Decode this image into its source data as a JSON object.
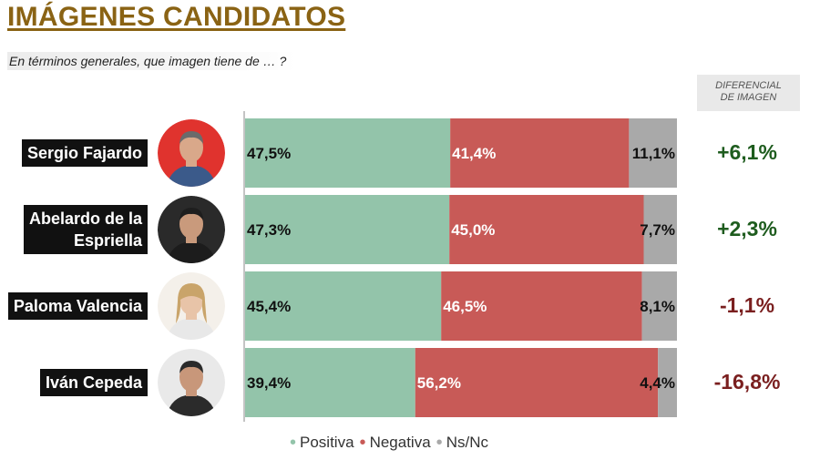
{
  "header": {
    "title": "IMÁGENES CANDIDATOS",
    "subtitle": "En términos generales, que imagen tiene de … ?",
    "diff_label_line1": "DIFERENCIAL",
    "diff_label_line2": "DE IMAGEN"
  },
  "candidates": [
    {
      "name_lines": [
        "Sergio Fajardo"
      ],
      "diff": "+6,1%",
      "photo_icon": "candidate-photo"
    },
    {
      "name_lines": [
        "Abelardo de la",
        "Espriella"
      ],
      "diff": "+2,3%",
      "photo_icon": "candidate-photo"
    },
    {
      "name_lines": [
        "Paloma Valencia"
      ],
      "diff": "-1,1%",
      "photo_icon": "candidate-photo"
    },
    {
      "name_lines": [
        "Iván Cepeda"
      ],
      "diff": "-16,8%",
      "photo_icon": "candidate-photo"
    }
  ],
  "chart_data": {
    "type": "bar",
    "orientation": "horizontal-stacked-100",
    "categories": [
      "Sergio Fajardo",
      "Abelardo de la Espriella",
      "Paloma Valencia",
      "Iván Cepeda"
    ],
    "series": [
      {
        "name": "Positiva",
        "values": [
          47.5,
          47.3,
          45.4,
          39.4
        ],
        "labels": [
          "47,5%",
          "47,3%",
          "45,4%",
          "39,4%"
        ],
        "color": "#93c4aa"
      },
      {
        "name": "Negativa",
        "values": [
          41.4,
          45.0,
          46.5,
          56.2
        ],
        "labels": [
          "41,4%",
          "45,0%",
          "46,5%",
          "56,2%"
        ],
        "color": "#c85a57"
      },
      {
        "name": "Ns/Nc",
        "values": [
          11.1,
          7.7,
          8.1,
          4.4
        ],
        "labels": [
          "11,1%",
          "7,7%",
          "8,1%",
          "4,4%"
        ],
        "color": "#a9a9a9"
      }
    ],
    "xlim": [
      0,
      100
    ],
    "legend": "bottom",
    "grid": false
  },
  "colors": {
    "title": "#8a6314",
    "positive_diff": "#1e5c1e",
    "negative_diff": "#7a1f1f",
    "photo_ring": "#e0332e"
  }
}
